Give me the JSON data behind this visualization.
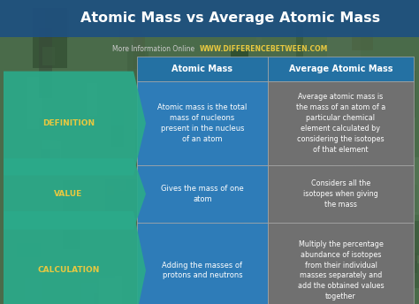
{
  "title": "Atomic Mass vs Average Atomic Mass",
  "subtitle_label": "More Information Online",
  "subtitle_url": "WWW.DIFFERENCEBETWEEN.COM",
  "col1_header": "Atomic Mass",
  "col2_header": "Average Atomic Mass",
  "rows": [
    {
      "label": "DEFINITION",
      "col1": "Atomic mass is the total\nmass of nucleons\npresent in the nucleus\nof an atom",
      "col2": "Average atomic mass is\nthe mass of an atom of a\nparticular chemical\nelement calculated by\nconsidering the isotopes\nof that element"
    },
    {
      "label": "VALUE",
      "col1": "Gives the mass of one\natom",
      "col2": "Considers all the\nisotopes when giving\nthe mass"
    },
    {
      "label": "CALCULATION",
      "col1": "Adding the masses of\nprotons and neutrons",
      "col2": "Multiply the percentage\nabundance of isotopes\nfrom their individual\nmasses separately and\nadd the obtained values\ntogether"
    }
  ],
  "title_color": "#ffffff",
  "title_bg_color": "#1e5080",
  "header_bg_color": "#2471a3",
  "header_text_color": "#ffffff",
  "label_bg_color": "#2baa8a",
  "label_text_color": "#e8c840",
  "col1_bg_color": "#2e7cb8",
  "col2_bg_color": "#767676",
  "col1_text_color": "#ffffff",
  "col2_text_color": "#ffffff",
  "subtitle_label_color": "#cccccc",
  "subtitle_url_color": "#e8c840",
  "bg_top_color": "#4a7a5a",
  "bg_bottom_color": "#3a5a3a",
  "title_area_color": "#1e5080"
}
